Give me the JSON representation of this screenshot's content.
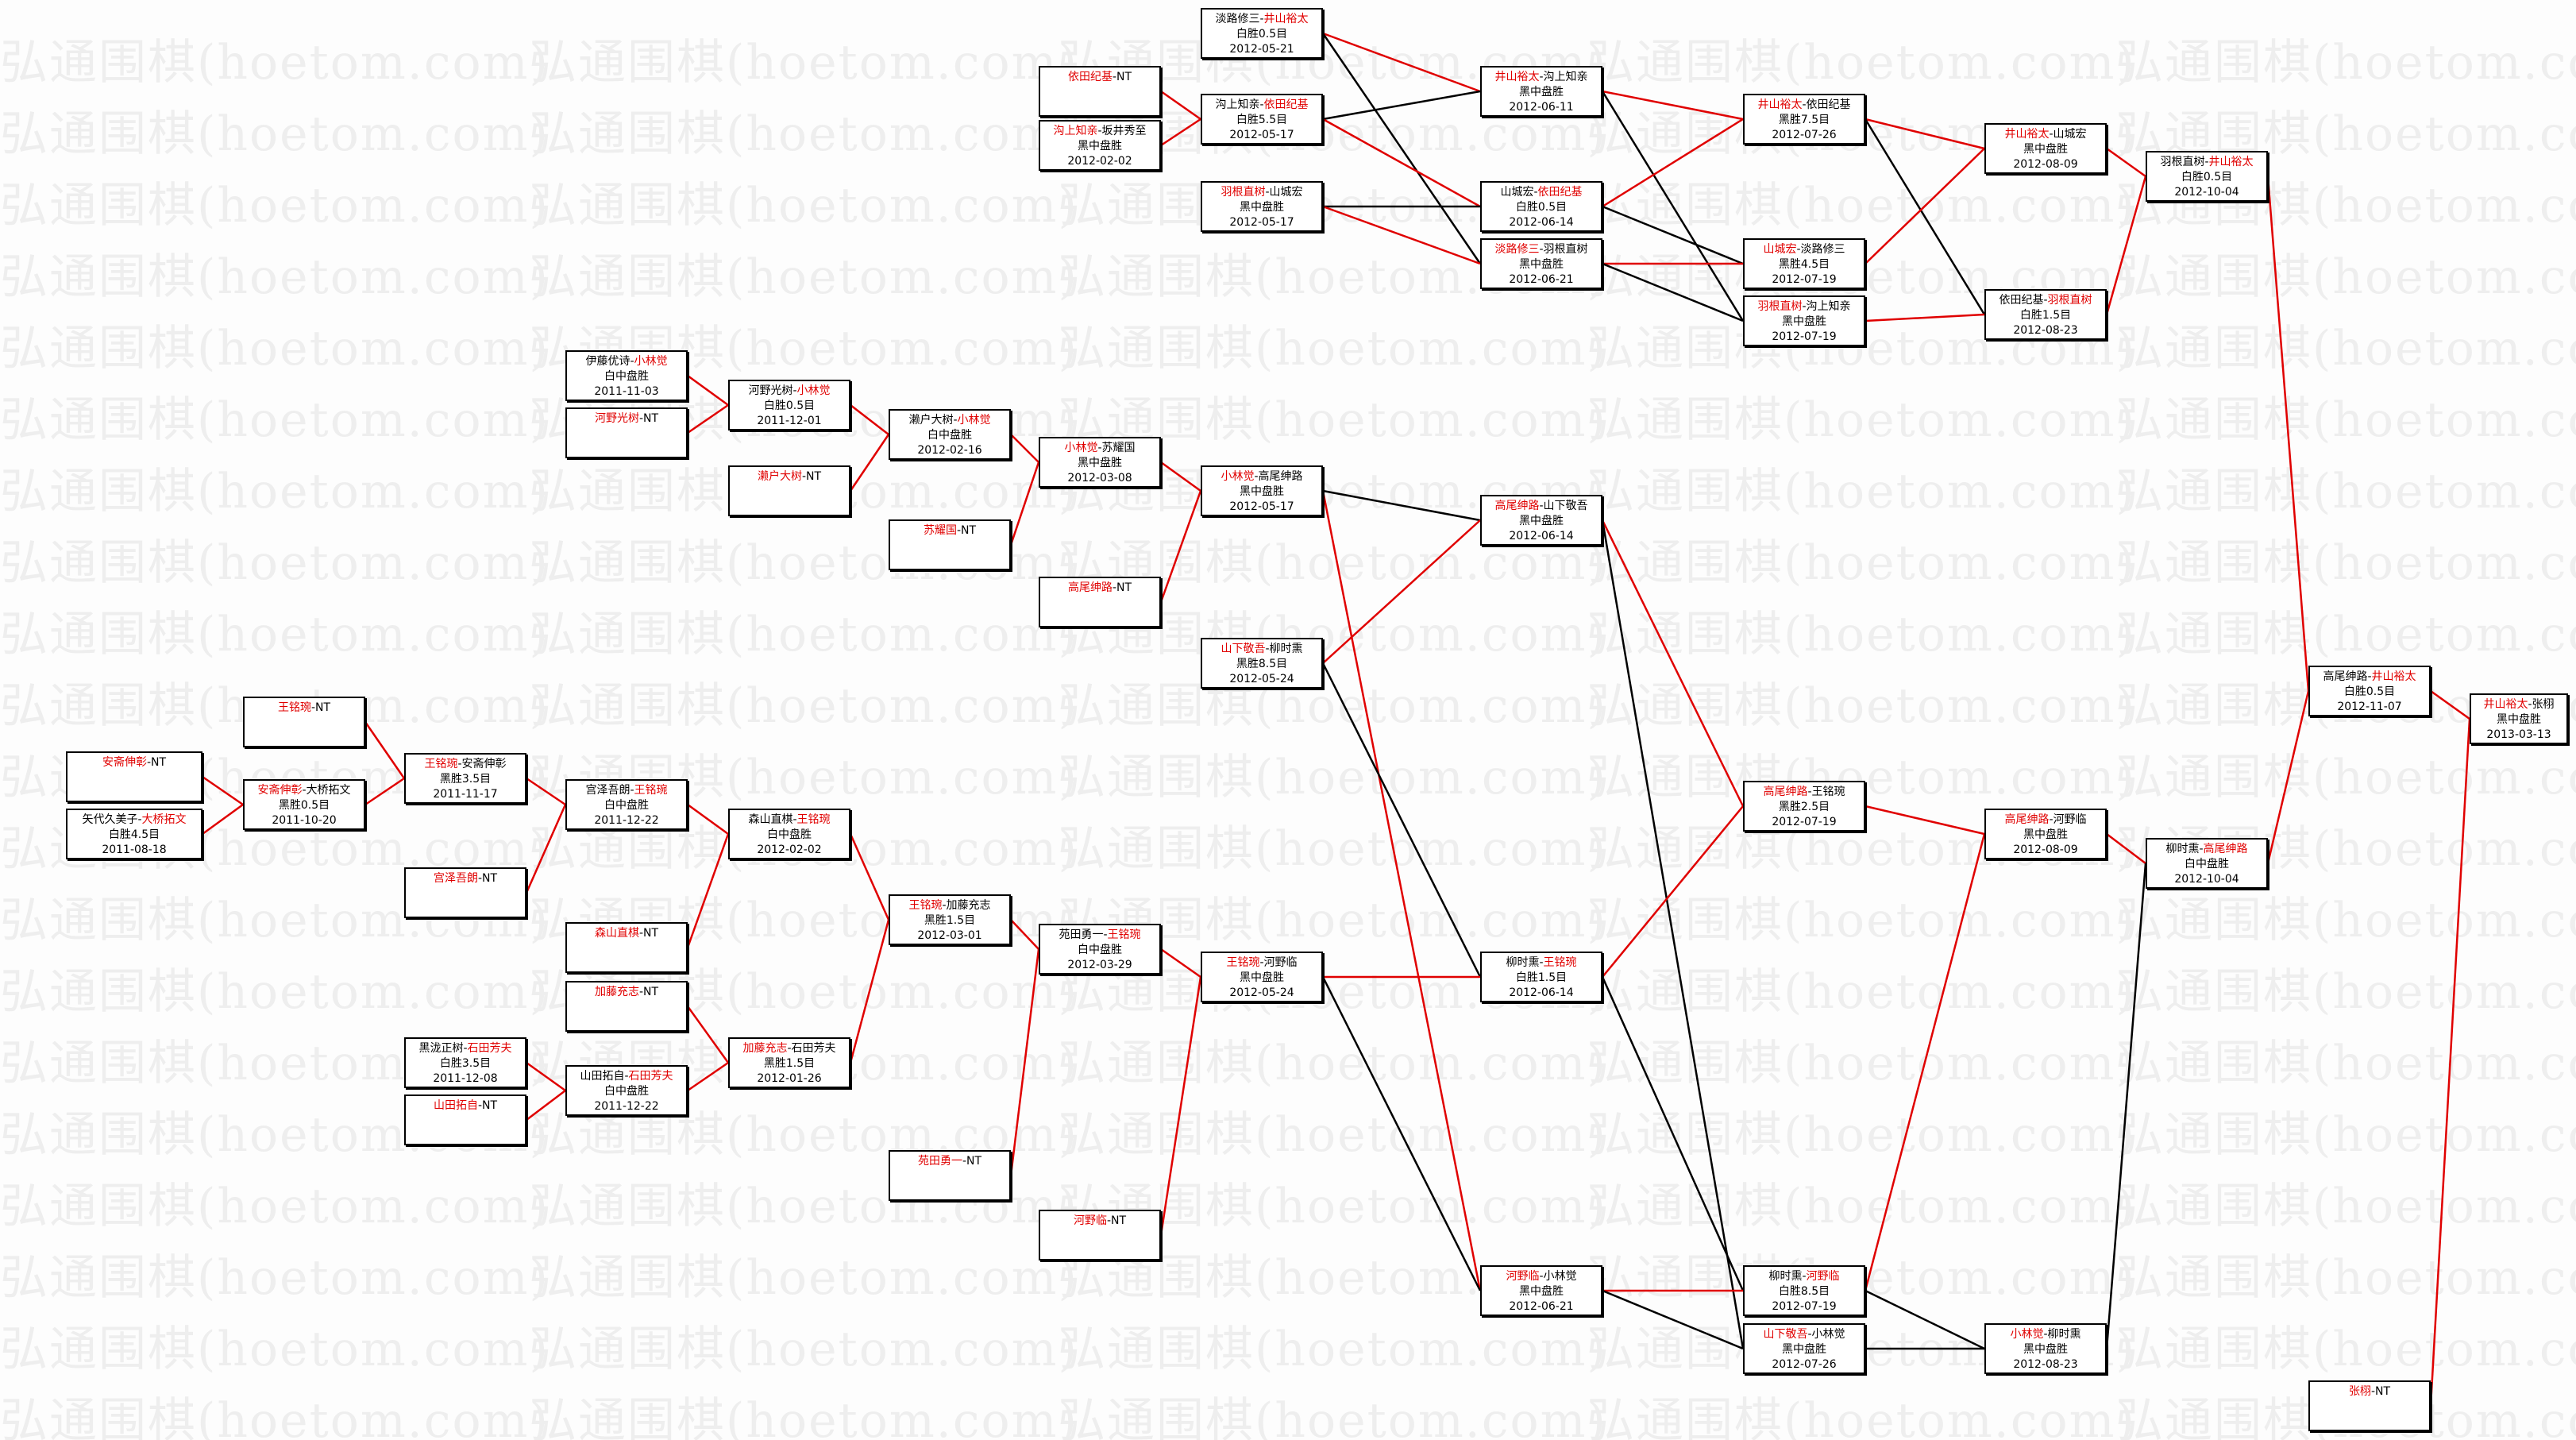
{
  "watermark": "弘通围棋(hoetom.com)",
  "colors": {
    "winner": "#e00000",
    "loser_path": "#000000",
    "winner_path": "#e00000"
  },
  "boxes": {
    "a1": {
      "p1": "安斋伸彰",
      "p2": "NT",
      "w": 1
    },
    "a2": {
      "p1": "矢代久美子",
      "p2": "大桥拓文",
      "w": 2,
      "result": "白胜4.5目",
      "date": "2011-08-18"
    },
    "b1": {
      "p1": "王铭琬",
      "p2": "NT",
      "w": 1
    },
    "b2": {
      "p1": "安斋伸彰",
      "p2": "大桥拓文",
      "w": 1,
      "result": "黑胜0.5目",
      "date": "2011-10-20"
    },
    "c1": {
      "p1": "王铭琬",
      "p2": "安斋伸彰",
      "w": 1,
      "result": "黑胜3.5目",
      "date": "2011-11-17"
    },
    "c2": {
      "p1": "宫泽吾朗",
      "p2": "NT",
      "w": 1
    },
    "c3": {
      "p1": "黑泷正树",
      "p2": "石田芳夫",
      "w": 2,
      "result": "白胜3.5目",
      "date": "2011-12-08"
    },
    "c4": {
      "p1": "山田拓自",
      "p2": "NT",
      "w": 1
    },
    "d1": {
      "p1": "伊藤优诗",
      "p2": "小林觉",
      "w": 2,
      "result": "白中盘胜",
      "date": "2011-11-03"
    },
    "d2": {
      "p1": "河野光树",
      "p2": "NT",
      "w": 1
    },
    "d3": {
      "p1": "宫泽吾朗",
      "p2": "王铭琬",
      "w": 2,
      "result": "白中盘胜",
      "date": "2011-12-22"
    },
    "d4": {
      "p1": "森山直棋",
      "p2": "NT",
      "w": 1
    },
    "d5": {
      "p1": "加藤充志",
      "p2": "NT",
      "w": 1
    },
    "d6": {
      "p1": "山田拓自",
      "p2": "石田芳夫",
      "w": 2,
      "result": "白中盘胜",
      "date": "2011-12-22"
    },
    "e1": {
      "p1": "河野光树",
      "p2": "小林觉",
      "w": 2,
      "result": "白胜0.5目",
      "date": "2011-12-01"
    },
    "e2": {
      "p1": "濑户大树",
      "p2": "NT",
      "w": 1
    },
    "e3": {
      "p1": "森山直棋",
      "p2": "王铭琬",
      "w": 2,
      "result": "白中盘胜",
      "date": "2012-02-02"
    },
    "e4": {
      "p1": "加藤充志",
      "p2": "石田芳夫",
      "w": 1,
      "result": "黑胜1.5目",
      "date": "2012-01-26"
    },
    "f1": {
      "p1": "濑户大树",
      "p2": "小林觉",
      "w": 2,
      "result": "白中盘胜",
      "date": "2012-02-16"
    },
    "f2": {
      "p1": "苏耀国",
      "p2": "NT",
      "w": 1
    },
    "f3": {
      "p1": "王铭琬",
      "p2": "加藤充志",
      "w": 1,
      "result": "黑胜1.5目",
      "date": "2012-03-01"
    },
    "f4": {
      "p1": "苑田勇一",
      "p2": "NT",
      "w": 1
    },
    "g1": {
      "p1": "依田纪基",
      "p2": "NT",
      "w": 1
    },
    "g2": {
      "p1": "沟上知亲",
      "p2": "坂井秀至",
      "w": 1,
      "result": "黑中盘胜",
      "date": "2012-02-02"
    },
    "g3": {
      "p1": "小林觉",
      "p2": "苏耀国",
      "w": 1,
      "result": "黑中盘胜",
      "date": "2012-03-08"
    },
    "g4": {
      "p1": "高尾绅路",
      "p2": "NT",
      "w": 1
    },
    "g5": {
      "p1": "苑田勇一",
      "p2": "王铭琬",
      "w": 2,
      "result": "白中盘胜",
      "date": "2012-03-29"
    },
    "g6": {
      "p1": "河野临",
      "p2": "NT",
      "w": 1
    },
    "h1": {
      "p1": "淡路修三",
      "p2": "井山裕太",
      "w": 2,
      "result": "白胜0.5目",
      "date": "2012-05-21"
    },
    "h2": {
      "p1": "沟上知亲",
      "p2": "依田纪基",
      "w": 2,
      "result": "白胜5.5目",
      "date": "2012-05-17"
    },
    "h3": {
      "p1": "羽根直树",
      "p2": "山城宏",
      "w": 1,
      "result": "黑中盘胜",
      "date": "2012-05-17"
    },
    "h4": {
      "p1": "小林觉",
      "p2": "高尾绅路",
      "w": 1,
      "result": "黑中盘胜",
      "date": "2012-05-17"
    },
    "h5": {
      "p1": "山下敬吾",
      "p2": "柳时熏",
      "w": 1,
      "result": "黑胜8.5目",
      "date": "2012-05-24"
    },
    "h6": {
      "p1": "王铭琬",
      "p2": "河野临",
      "w": 1,
      "result": "黑中盘胜",
      "date": "2012-05-24"
    },
    "i1": {
      "p1": "井山裕太",
      "p2": "沟上知亲",
      "w": 1,
      "result": "黑中盘胜",
      "date": "2012-06-11"
    },
    "i2": {
      "p1": "山城宏",
      "p2": "依田纪基",
      "w": 2,
      "result": "白胜0.5目",
      "date": "2012-06-14"
    },
    "i3": {
      "p1": "淡路修三",
      "p2": "羽根直树",
      "w": 1,
      "result": "黑中盘胜",
      "date": "2012-06-21"
    },
    "i4": {
      "p1": "高尾绅路",
      "p2": "山下敬吾",
      "w": 1,
      "result": "黑中盘胜",
      "date": "2012-06-14"
    },
    "i5": {
      "p1": "柳时熏",
      "p2": "王铭琬",
      "w": 2,
      "result": "白胜1.5目",
      "date": "2012-06-14"
    },
    "i6": {
      "p1": "河野临",
      "p2": "小林觉",
      "w": 1,
      "result": "黑中盘胜",
      "date": "2012-06-21"
    },
    "j1": {
      "p1": "井山裕太",
      "p2": "依田纪基",
      "w": 1,
      "result": "黑胜7.5目",
      "date": "2012-07-26"
    },
    "j2": {
      "p1": "山城宏",
      "p2": "淡路修三",
      "w": 1,
      "result": "黑胜4.5目",
      "date": "2012-07-19"
    },
    "j3": {
      "p1": "羽根直树",
      "p2": "沟上知亲",
      "w": 1,
      "result": "黑中盘胜",
      "date": "2012-07-19"
    },
    "j4": {
      "p1": "高尾绅路",
      "p2": "王铭琬",
      "w": 1,
      "result": "黑胜2.5目",
      "date": "2012-07-19"
    },
    "j5": {
      "p1": "柳时熏",
      "p2": "河野临",
      "w": 2,
      "result": "白胜8.5目",
      "date": "2012-07-19"
    },
    "j6": {
      "p1": "山下敬吾",
      "p2": "小林觉",
      "w": 1,
      "result": "黑中盘胜",
      "date": "2012-07-26"
    },
    "k1": {
      "p1": "井山裕太",
      "p2": "山城宏",
      "w": 1,
      "result": "黑中盘胜",
      "date": "2012-08-09"
    },
    "k2": {
      "p1": "依田纪基",
      "p2": "羽根直树",
      "w": 2,
      "result": "白胜1.5目",
      "date": "2012-08-23"
    },
    "k3": {
      "p1": "高尾绅路",
      "p2": "河野临",
      "w": 1,
      "result": "黑中盘胜",
      "date": "2012-08-09"
    },
    "k4": {
      "p1": "小林觉",
      "p2": "柳时熏",
      "w": 1,
      "result": "黑中盘胜",
      "date": "2012-08-23"
    },
    "l1": {
      "p1": "羽根直树",
      "p2": "井山裕太",
      "w": 2,
      "result": "白胜0.5目",
      "date": "2012-10-04"
    },
    "l2": {
      "p1": "柳时熏",
      "p2": "高尾绅路",
      "w": 2,
      "result": "白中盘胜",
      "date": "2012-10-04"
    },
    "m1": {
      "p1": "高尾绅路",
      "p2": "井山裕太",
      "w": 2,
      "result": "白胜0.5目",
      "date": "2012-11-07"
    },
    "m2": {
      "p1": "张栩",
      "p2": "NT",
      "w": 1
    },
    "n1": {
      "p1": "井山裕太",
      "p2": "张栩",
      "w": 1,
      "result": "黑中盘胜",
      "date": "2013-03-13"
    }
  },
  "edges": [
    [
      "a1",
      "b2",
      "winner"
    ],
    [
      "a2",
      "b2",
      "winner"
    ],
    [
      "b1",
      "c1",
      "winner"
    ],
    [
      "b2",
      "c1",
      "winner"
    ],
    [
      "c1",
      "d3",
      "winner"
    ],
    [
      "c2",
      "d3",
      "winner"
    ],
    [
      "c3",
      "d6",
      "winner"
    ],
    [
      "c4",
      "d6",
      "winner"
    ],
    [
      "d1",
      "e1",
      "winner"
    ],
    [
      "d2",
      "e1",
      "winner"
    ],
    [
      "d3",
      "e3",
      "winner"
    ],
    [
      "d4",
      "e3",
      "winner"
    ],
    [
      "d5",
      "e4",
      "winner"
    ],
    [
      "d6",
      "e4",
      "winner"
    ],
    [
      "e1",
      "f1",
      "winner"
    ],
    [
      "e2",
      "f1",
      "winner"
    ],
    [
      "e3",
      "f3",
      "winner"
    ],
    [
      "e4",
      "f3",
      "winner"
    ],
    [
      "f1",
      "g3",
      "winner"
    ],
    [
      "f2",
      "g3",
      "winner"
    ],
    [
      "f3",
      "g5",
      "winner"
    ],
    [
      "f4",
      "g5",
      "winner"
    ],
    [
      "g1",
      "h2",
      "winner"
    ],
    [
      "g2",
      "h2",
      "winner"
    ],
    [
      "g3",
      "h4",
      "winner"
    ],
    [
      "g4",
      "h4",
      "winner"
    ],
    [
      "g5",
      "h6",
      "winner"
    ],
    [
      "g6",
      "h6",
      "winner"
    ],
    [
      "h1",
      "i1",
      "winner"
    ],
    [
      "h1",
      "i3",
      "loser"
    ],
    [
      "h2",
      "i1",
      "loser"
    ],
    [
      "h2",
      "i2",
      "winner"
    ],
    [
      "h3",
      "i2",
      "loser"
    ],
    [
      "h3",
      "i3",
      "winner"
    ],
    [
      "h4",
      "i4",
      "loser"
    ],
    [
      "h4",
      "i6",
      "winner"
    ],
    [
      "h5",
      "i4",
      "winner"
    ],
    [
      "h5",
      "i5",
      "loser"
    ],
    [
      "h6",
      "i5",
      "winner"
    ],
    [
      "h6",
      "i6",
      "loser"
    ],
    [
      "i1",
      "j1",
      "winner"
    ],
    [
      "i1",
      "j3",
      "loser"
    ],
    [
      "i2",
      "j1",
      "winner"
    ],
    [
      "i2",
      "j2",
      "loser"
    ],
    [
      "i3",
      "j2",
      "winner"
    ],
    [
      "i3",
      "j3",
      "loser"
    ],
    [
      "i4",
      "j4",
      "winner"
    ],
    [
      "i4",
      "j6",
      "loser"
    ],
    [
      "i5",
      "j4",
      "winner"
    ],
    [
      "i5",
      "j5",
      "loser"
    ],
    [
      "i6",
      "j5",
      "winner"
    ],
    [
      "i6",
      "j6",
      "loser"
    ],
    [
      "j1",
      "k1",
      "winner"
    ],
    [
      "j1",
      "k2",
      "loser"
    ],
    [
      "j2",
      "k1",
      "winner"
    ],
    [
      "j3",
      "k2",
      "winner"
    ],
    [
      "j4",
      "k3",
      "winner"
    ],
    [
      "j5",
      "k3",
      "winner"
    ],
    [
      "j5",
      "k4",
      "loser"
    ],
    [
      "j6",
      "k4",
      "loser"
    ],
    [
      "k1",
      "l1",
      "winner"
    ],
    [
      "k2",
      "l1",
      "winner"
    ],
    [
      "k3",
      "l2",
      "winner"
    ],
    [
      "k4",
      "l2",
      "loser"
    ],
    [
      "l1",
      "m1",
      "winner"
    ],
    [
      "l2",
      "m1",
      "winner"
    ],
    [
      "m1",
      "n1",
      "winner"
    ],
    [
      "m2",
      "n1",
      "winner"
    ]
  ]
}
